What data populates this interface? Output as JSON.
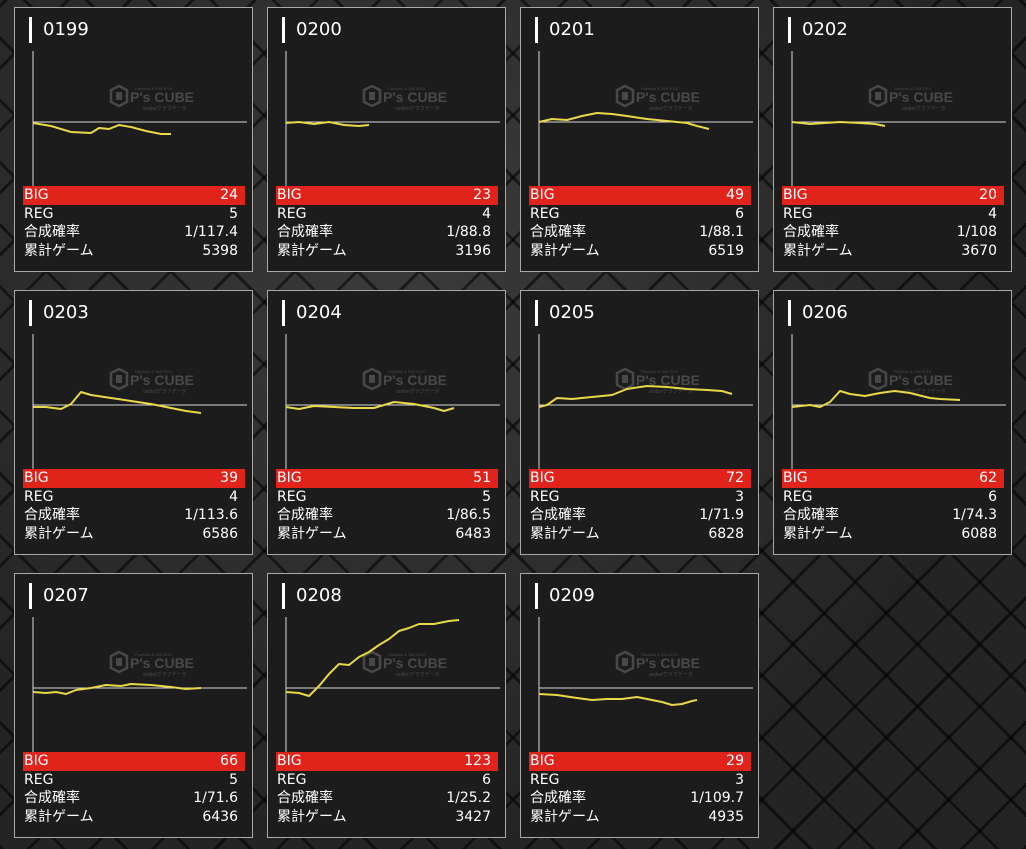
{
  "labels": {
    "big": "BIG",
    "reg": "REG",
    "prob": "合成確率",
    "games": "累計ゲーム"
  },
  "watermark": {
    "logo_text": "P's CUBE",
    "tagline": "Pachislo & Slot 2019",
    "subline": "anibo/グラフデータ"
  },
  "colors": {
    "accent_red": "#e0231b",
    "graph_line": "#e8d94a"
  },
  "machines": [
    {
      "id": "0199",
      "big": "24",
      "reg": "5",
      "prob": "1/117.4",
      "games": "5398"
    },
    {
      "id": "0200",
      "big": "23",
      "reg": "4",
      "prob": "1/88.8",
      "games": "3196"
    },
    {
      "id": "0201",
      "big": "49",
      "reg": "6",
      "prob": "1/88.1",
      "games": "6519"
    },
    {
      "id": "0202",
      "big": "20",
      "reg": "4",
      "prob": "1/108",
      "games": "3670"
    },
    {
      "id": "0203",
      "big": "39",
      "reg": "4",
      "prob": "1/113.6",
      "games": "6586"
    },
    {
      "id": "0204",
      "big": "51",
      "reg": "5",
      "prob": "1/86.5",
      "games": "6483"
    },
    {
      "id": "0205",
      "big": "72",
      "reg": "3",
      "prob": "1/71.9",
      "games": "6828"
    },
    {
      "id": "0206",
      "big": "62",
      "reg": "6",
      "prob": "1/74.3",
      "games": "6088"
    },
    {
      "id": "0207",
      "big": "66",
      "reg": "5",
      "prob": "1/71.6",
      "games": "6436"
    },
    {
      "id": "0208",
      "big": "123",
      "reg": "6",
      "prob": "1/25.2",
      "games": "3427"
    },
    {
      "id": "0209",
      "big": "29",
      "reg": "3",
      "prob": "1/109.7",
      "games": "4935"
    }
  ]
}
